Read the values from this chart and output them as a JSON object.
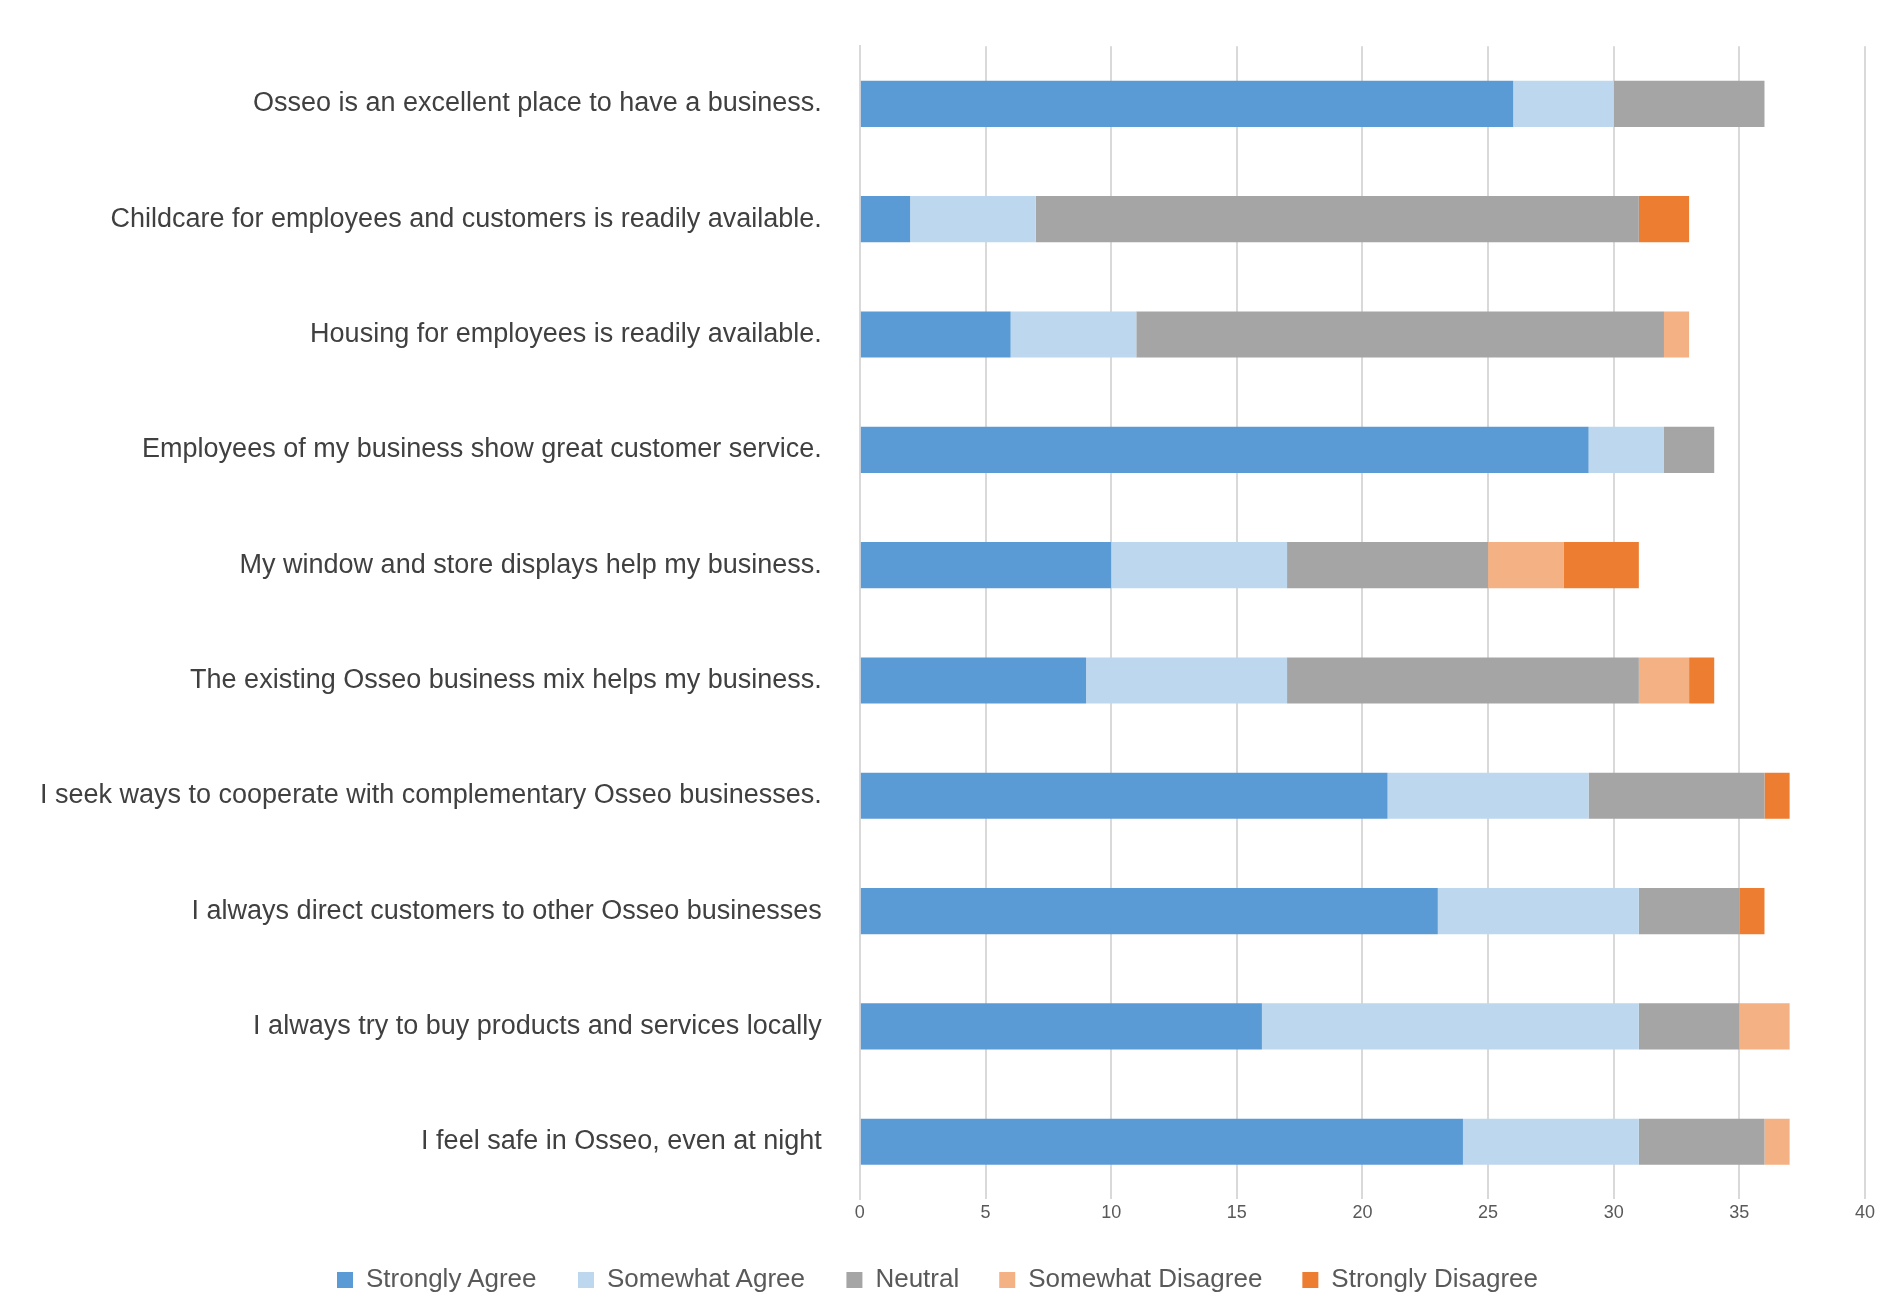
{
  "chart_data": {
    "type": "bar",
    "orientation": "horizontal",
    "stacked": true,
    "categories": [
      "Osseo is an excellent place to have a business.",
      "Childcare for employees and customers is readily available.",
      "Housing for employees is readily available.",
      "Employees of my business show great customer service.",
      "My window and store displays help my business.",
      "The existing Osseo business mix helps my business.",
      "I seek ways to cooperate with complementary Osseo businesses.",
      "I always direct customers to other Osseo businesses",
      "I always try to buy products and services locally",
      "I feel safe in Osseo, even at night"
    ],
    "series": [
      {
        "name": "Strongly Agree",
        "color": "#5b9bd5",
        "values": [
          26,
          2,
          6,
          29,
          10,
          9,
          21,
          23,
          16,
          24
        ]
      },
      {
        "name": "Somewhat Agree",
        "color": "#bdd7ee",
        "values": [
          4,
          5,
          5,
          3,
          7,
          8,
          8,
          8,
          15,
          7
        ]
      },
      {
        "name": "Neutral",
        "color": "#a5a5a5",
        "values": [
          6,
          24,
          21,
          2,
          8,
          14,
          7,
          4,
          4,
          5
        ]
      },
      {
        "name": "Somewhat Disagree",
        "color": "#f4b183",
        "values": [
          null,
          null,
          1,
          null,
          3,
          2,
          null,
          null,
          2,
          1
        ]
      },
      {
        "name": "Strongly Disagree",
        "color": "#ed7d31",
        "values": [
          null,
          2,
          null,
          null,
          3,
          1,
          1,
          1,
          null,
          null
        ]
      }
    ],
    "xlim": [
      0,
      40
    ],
    "xticks": [
      0,
      5,
      10,
      15,
      20,
      25,
      30,
      35,
      40
    ],
    "grid": "x",
    "legend": "bottom"
  }
}
